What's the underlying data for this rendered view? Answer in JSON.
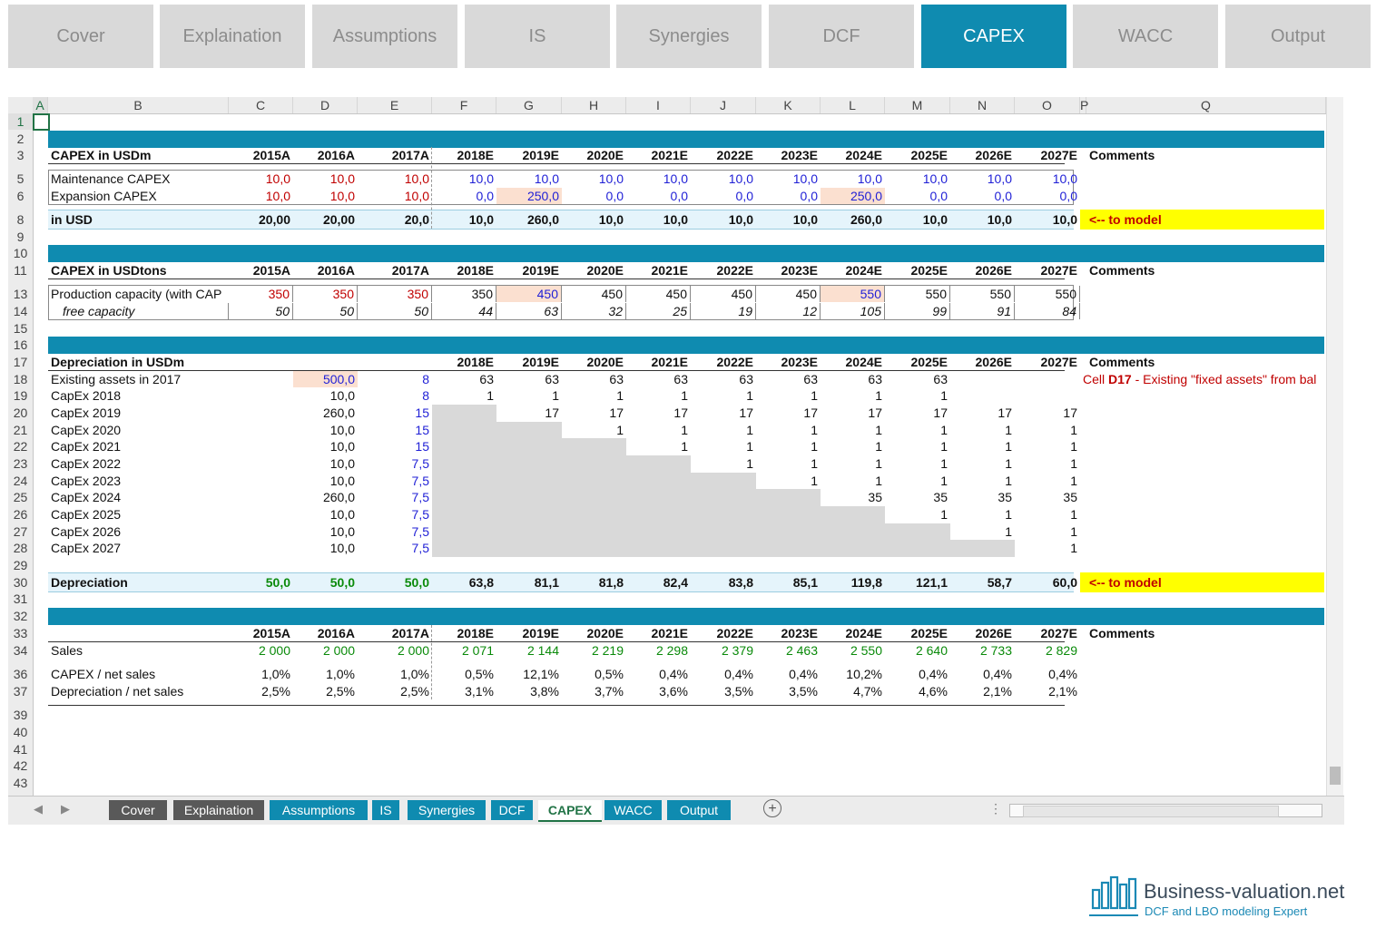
{
  "top_nav": [
    "Cover",
    "Explaination",
    "Assumptions",
    "IS",
    "Synergies",
    "DCF",
    "CAPEX",
    "WACC",
    "Output"
  ],
  "top_nav_active": "CAPEX",
  "columns": [
    "A",
    "B",
    "C",
    "D",
    "E",
    "F",
    "G",
    "H",
    "I",
    "J",
    "K",
    "L",
    "M",
    "N",
    "O",
    "P",
    "Q"
  ],
  "rows": [
    "1",
    "2",
    "3",
    "5",
    "6",
    "8",
    "9",
    "10",
    "11",
    "13",
    "14",
    "15",
    "16",
    "17",
    "18",
    "19",
    "20",
    "21",
    "22",
    "23",
    "24",
    "25",
    "26",
    "27",
    "28",
    "29",
    "30",
    "31",
    "32",
    "33",
    "34",
    "36",
    "37",
    "39",
    "40",
    "41",
    "42",
    "43"
  ],
  "capex": {
    "title": "CAPEX in USDm",
    "years": [
      "2015A",
      "2016A",
      "2017A",
      "2018E",
      "2019E",
      "2020E",
      "2021E",
      "2022E",
      "2023E",
      "2024E",
      "2025E",
      "2026E",
      "2027E"
    ],
    "comments": "Comments",
    "maint_label": "Maintenance CAPEX",
    "maint": [
      "10,0",
      "10,0",
      "10,0",
      "10,0",
      "10,0",
      "10,0",
      "10,0",
      "10,0",
      "10,0",
      "10,0",
      "10,0",
      "10,0",
      "10,0"
    ],
    "exp_label": "Expansion CAPEX",
    "exp": [
      "10,0",
      "10,0",
      "10,0",
      "0,0",
      "250,0",
      "0,0",
      "0,0",
      "0,0",
      "0,0",
      "250,0",
      "0,0",
      "0,0",
      "0,0"
    ],
    "total_label": "in USD",
    "total": [
      "20,00",
      "20,00",
      "20,0",
      "10,0",
      "260,0",
      "10,0",
      "10,0",
      "10,0",
      "10,0",
      "260,0",
      "10,0",
      "10,0",
      "10,0"
    ],
    "to_model": "<-- to model"
  },
  "tons": {
    "title": "CAPEX in USDtons",
    "years": [
      "2015A",
      "2016A",
      "2017A",
      "2018E",
      "2019E",
      "2020E",
      "2021E",
      "2022E",
      "2023E",
      "2024E",
      "2025E",
      "2026E",
      "2027E"
    ],
    "comments": "Comments",
    "prod_label": "Production capacity (with CAP",
    "prod": [
      "350",
      "350",
      "350",
      "350",
      "450",
      "450",
      "450",
      "450",
      "450",
      "550",
      "550",
      "550",
      "550"
    ],
    "free_label": "free capacity",
    "free": [
      "50",
      "50",
      "50",
      "44",
      "63",
      "32",
      "25",
      "19",
      "12",
      "105",
      "99",
      "91",
      "84"
    ]
  },
  "dep": {
    "title": "Depreciation in USDm",
    "years": [
      "2018E",
      "2019E",
      "2020E",
      "2021E",
      "2022E",
      "2023E",
      "2024E",
      "2025E",
      "2026E",
      "2027E"
    ],
    "comments": "Comments",
    "note_prefix": "Cell ",
    "note_ref": "D17",
    "note_suffix": " - Existing \"fixed assets\" from bal",
    "rows": [
      {
        "label": "Existing assets in 2017",
        "d": "500,0",
        "e": "8",
        "vals": [
          "63",
          "63",
          "63",
          "63",
          "63",
          "63",
          "63",
          "63",
          "",
          ""
        ]
      },
      {
        "label": "CapEx 2018",
        "d": "10,0",
        "e": "8",
        "vals": [
          "1",
          "1",
          "1",
          "1",
          "1",
          "1",
          "1",
          "1",
          "",
          ""
        ]
      },
      {
        "label": "CapEx 2019",
        "d": "260,0",
        "e": "15",
        "vals": [
          "",
          "17",
          "17",
          "17",
          "17",
          "17",
          "17",
          "17",
          "17",
          "17"
        ]
      },
      {
        "label": "CapEx 2020",
        "d": "10,0",
        "e": "15",
        "vals": [
          "",
          "",
          "1",
          "1",
          "1",
          "1",
          "1",
          "1",
          "1",
          "1"
        ]
      },
      {
        "label": "CapEx 2021",
        "d": "10,0",
        "e": "15",
        "vals": [
          "",
          "",
          "",
          "1",
          "1",
          "1",
          "1",
          "1",
          "1",
          "1"
        ]
      },
      {
        "label": "CapEx 2022",
        "d": "10,0",
        "e": "7,5",
        "vals": [
          "",
          "",
          "",
          "",
          "1",
          "1",
          "1",
          "1",
          "1",
          "1"
        ]
      },
      {
        "label": "CapEx 2023",
        "d": "10,0",
        "e": "7,5",
        "vals": [
          "",
          "",
          "",
          "",
          "",
          "1",
          "1",
          "1",
          "1",
          "1"
        ]
      },
      {
        "label": "CapEx 2024",
        "d": "260,0",
        "e": "7,5",
        "vals": [
          "",
          "",
          "",
          "",
          "",
          "",
          "35",
          "35",
          "35",
          "35"
        ]
      },
      {
        "label": "CapEx 2025",
        "d": "10,0",
        "e": "7,5",
        "vals": [
          "",
          "",
          "",
          "",
          "",
          "",
          "",
          "1",
          "1",
          "1"
        ]
      },
      {
        "label": "CapEx 2026",
        "d": "10,0",
        "e": "7,5",
        "vals": [
          "",
          "",
          "",
          "",
          "",
          "",
          "",
          "",
          "1",
          "1"
        ]
      },
      {
        "label": "CapEx 2027",
        "d": "10,0",
        "e": "7,5",
        "vals": [
          "",
          "",
          "",
          "",
          "",
          "",
          "",
          "",
          "",
          "1"
        ]
      }
    ],
    "total_label": "Depreciation",
    "total": [
      "50,0",
      "50,0",
      "50,0",
      "63,8",
      "81,1",
      "81,8",
      "82,4",
      "83,8",
      "85,1",
      "119,8",
      "121,1",
      "58,7",
      "60,0"
    ],
    "to_model": "<-- to model"
  },
  "ratios": {
    "years": [
      "2015A",
      "2016A",
      "2017A",
      "2018E",
      "2019E",
      "2020E",
      "2021E",
      "2022E",
      "2023E",
      "2024E",
      "2025E",
      "2026E",
      "2027E"
    ],
    "comments": "Comments",
    "sales_label": "Sales",
    "sales": [
      "2 000",
      "2 000",
      "2 000",
      "2 071",
      "2 144",
      "2 219",
      "2 298",
      "2 379",
      "2 463",
      "2 550",
      "2 640",
      "2 733",
      "2 829"
    ],
    "capex_label": "CAPEX / net sales",
    "capex": [
      "1,0%",
      "1,0%",
      "1,0%",
      "0,5%",
      "12,1%",
      "0,5%",
      "0,4%",
      "0,4%",
      "0,4%",
      "10,2%",
      "0,4%",
      "0,4%",
      "0,4%"
    ],
    "dep_label": "Depreciation / net sales",
    "dep": [
      "2,5%",
      "2,5%",
      "2,5%",
      "3,1%",
      "3,8%",
      "3,7%",
      "3,6%",
      "3,5%",
      "3,5%",
      "4,7%",
      "4,6%",
      "2,1%",
      "2,1%"
    ]
  },
  "sheet_tabs": [
    "Cover",
    "Explaination",
    "Assumptions",
    "IS",
    "Synergies",
    "DCF",
    "CAPEX",
    "WACC",
    "Output"
  ],
  "sheet_tab_active": "CAPEX",
  "icons": {
    "prev": "chevron-left-icon",
    "next": "chevron-right-icon",
    "add": "plus-circle-icon",
    "more": "vertical-dots-icon"
  },
  "logo": {
    "title": "Business-valuation.net",
    "subtitle": "DCF and LBO modeling Expert"
  },
  "colors": {
    "accent": "#0f8bb0",
    "active_tab": "#0f8bb0",
    "red": "#c00000",
    "blue": "#1f1fd6",
    "green": "#0a8a0a",
    "highlight": "#ffff00"
  }
}
